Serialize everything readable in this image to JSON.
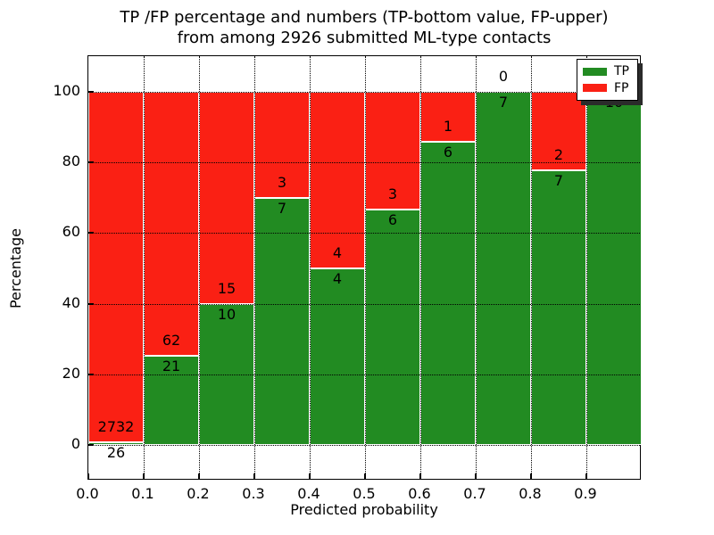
{
  "figure": {
    "title_line1": "TP /FP percentage and numbers (TP-bottom value, FP-upper)",
    "title_line2": "from among 2926 submitted ML-type contacts"
  },
  "colors": {
    "tp_green": "#228b22",
    "fp_red": "#fa2014",
    "bar_edge": "#ffffff",
    "grid": "#000000",
    "background": "#ffffff",
    "text": "#000000",
    "legend_shadow": "#2b2b2b"
  },
  "legend": {
    "entries": [
      {
        "label": "TP",
        "color_key": "tp_green"
      },
      {
        "label": "FP",
        "color_key": "fp_red"
      }
    ]
  },
  "chart_data": {
    "type": "bar",
    "stacked": true,
    "normalized_to_percent": true,
    "title": "TP /FP percentage and numbers (TP-bottom value, FP-upper)\nfrom among 2926 submitted ML-type contacts",
    "xlabel": "Predicted probability",
    "ylabel": "Percentage",
    "x_tick_labels": [
      "0.0",
      "0.1",
      "0.2",
      "0.3",
      "0.4",
      "0.5",
      "0.6",
      "0.7",
      "0.8",
      "0.9"
    ],
    "y_ticks": [
      0,
      20,
      40,
      60,
      80,
      100
    ],
    "xlim": [
      0.0,
      1.0
    ],
    "ylim": [
      -10,
      110
    ],
    "bin_width": 0.1,
    "grid": true,
    "grid_style": "dotted",
    "legend_position": "upper right",
    "categories": [
      "0.0-0.1",
      "0.1-0.2",
      "0.2-0.3",
      "0.3-0.4",
      "0.4-0.5",
      "0.5-0.6",
      "0.6-0.7",
      "0.7-0.8",
      "0.8-0.9",
      "0.9-1.0"
    ],
    "series": [
      {
        "name": "TP",
        "values": [
          26,
          21,
          10,
          7,
          4,
          6,
          6,
          7,
          7,
          10
        ]
      },
      {
        "name": "FP",
        "values": [
          2732,
          62,
          15,
          3,
          4,
          3,
          1,
          0,
          2,
          0
        ]
      }
    ],
    "tp_percent": [
      0.9,
      25.3,
      40.0,
      70.0,
      50.0,
      66.7,
      85.7,
      100.0,
      77.8,
      100.0
    ]
  }
}
